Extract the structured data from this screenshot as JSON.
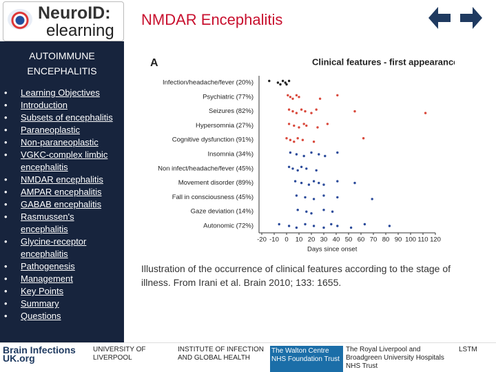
{
  "header": {
    "logo": [
      "NeuroID:",
      "elearning"
    ],
    "title": "NMDAR Encephalitis"
  },
  "sidebar": {
    "heading": [
      "AUTOIMMUNE",
      "ENCEPHALITIS"
    ],
    "links": [
      "Learning Objectives",
      "Introduction",
      "Subsets of encephalitis",
      "Paraneoplastic",
      "Non-paraneoplastic",
      "VGKC-complex limbic encephalitis",
      "NMDAR encephalitis",
      "AMPAR encephalitis",
      "GABAB encephalitis",
      "Rasmussen's encephalitis",
      "Glycine-receptor encephalitis",
      "Pathogenesis",
      "Management",
      "Key Points",
      "Summary",
      "Questions"
    ]
  },
  "chart_data": {
    "type": "dot",
    "panel": "A",
    "title": "Clinical features - first appearance",
    "xlabel": "Days since onset",
    "categories": [
      "Infection/headache/fever (20%)",
      "Psychiatric (77%)",
      "Seizures (82%)",
      "Hypersomnia (27%)",
      "Cognitive dysfunction (91%)",
      "Insomnia (34%)",
      "Non infect/headache/fever (45%)",
      "Movement disorder (89%)",
      "Fall  in consciousness (45%)",
      "Gaze deviation (14%)",
      "Autonomic (72%)"
    ],
    "colors": [
      "#222222",
      "#d9483b",
      "#d9483b",
      "#d9483b",
      "#d9483b",
      "#2a4a9a",
      "#2a4a9a",
      "#2a4a9a",
      "#2a4a9a",
      "#2a4a9a",
      "#2a4a9a"
    ],
    "values": [
      [
        -14,
        -7,
        -5,
        -3,
        -1,
        0,
        2
      ],
      [
        1,
        3,
        5,
        8,
        10,
        27,
        41
      ],
      [
        2,
        5,
        8,
        12,
        15,
        20,
        24,
        55,
        112
      ],
      [
        2,
        6,
        10,
        14,
        16,
        25,
        33
      ],
      [
        0,
        3,
        6,
        9,
        13,
        22,
        62
      ],
      [
        3,
        8,
        14,
        20,
        26,
        31,
        41
      ],
      [
        2,
        5,
        9,
        12,
        16,
        24
      ],
      [
        7,
        12,
        18,
        22,
        26,
        30,
        41,
        55
      ],
      [
        8,
        15,
        22,
        30,
        41,
        69
      ],
      [
        9,
        16,
        20,
        30,
        37
      ],
      [
        -6,
        2,
        8,
        15,
        22,
        30,
        36,
        41,
        52,
        63,
        83
      ]
    ],
    "xlim": [
      -20,
      120
    ],
    "xticks": [
      -20,
      -10,
      0,
      10,
      20,
      30,
      40,
      50,
      60,
      70,
      80,
      90,
      100,
      110,
      120
    ]
  },
  "caption": "Illustration of the occurrence of clinical features according to the stage of illness. From Irani et al. Brain 2010; 133: 1655.",
  "footer": {
    "logos": [
      "Brain Infections UK.org",
      "UNIVERSITY OF LIVERPOOL",
      "INSTITUTE OF INFECTION AND GLOBAL HEALTH",
      "The Walton Centre NHS Foundation Trust",
      "The Royal Liverpool and Broadgreen University Hospitals NHS Trust",
      "LSTM"
    ]
  }
}
